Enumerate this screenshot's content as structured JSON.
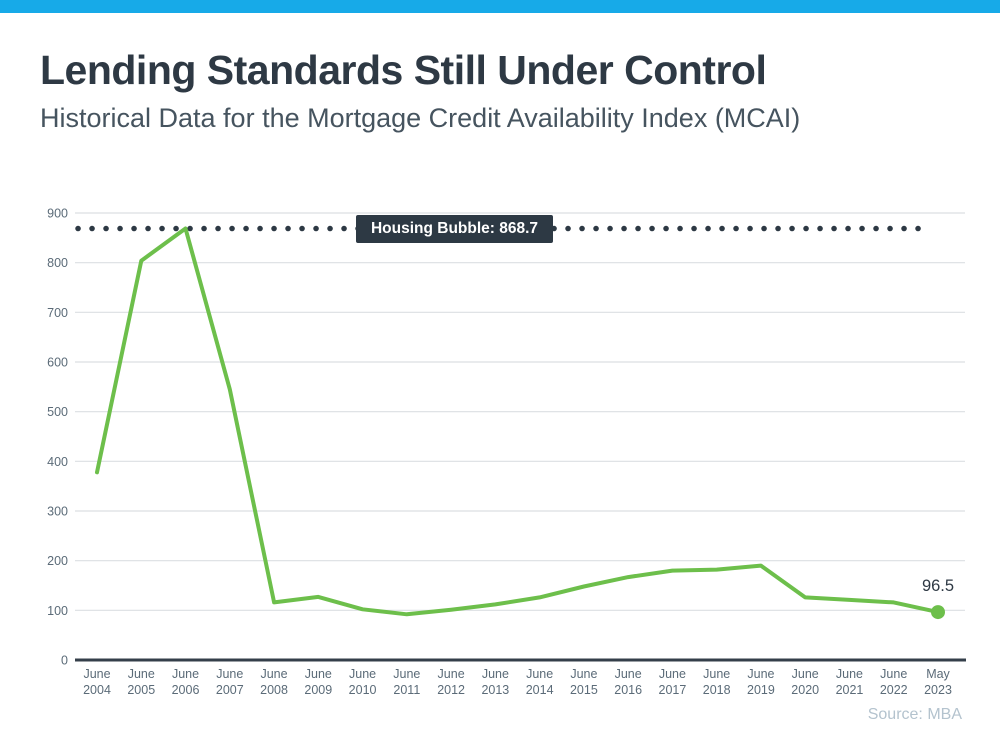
{
  "header": {
    "title": "Lending Standards Still Under Control",
    "subtitle": "Historical Data for the Mortgage Credit Availability Index (MCAI)"
  },
  "footer": {
    "source": "Source: MBA"
  },
  "theme": {
    "topbar_color": "#17aae8",
    "background": "#ffffff",
    "title_color": "#2e3944",
    "subtitle_color": "#46545f",
    "line_color": "#6dbf4b",
    "annotation_color": "#2d3944",
    "annotation_text_color": "#ffffff",
    "grid_color": "#dcdfe2",
    "axis_color": "#343f4a",
    "tick_color": "#5b6b78",
    "end_label_color": "#2e3944",
    "source_color": "#b4c3ce"
  },
  "chart_data": {
    "type": "line",
    "title": "Historical Data for the Mortgage Credit Availability Index (MCAI)",
    "series_name": "MCAI",
    "categories": [
      "June 2004",
      "June 2005",
      "June 2006",
      "June 2007",
      "June 2008",
      "June 2009",
      "June 2010",
      "June 2011",
      "June 2012",
      "June 2013",
      "June 2014",
      "June 2015",
      "June 2016",
      "June 2017",
      "June 2018",
      "June 2019",
      "June 2020",
      "June 2021",
      "June 2022",
      "May 2023"
    ],
    "values": [
      378,
      804,
      868.7,
      545,
      116,
      127,
      102,
      92,
      101,
      112,
      126,
      148,
      167,
      180,
      182,
      190,
      126,
      121,
      116,
      96.5
    ],
    "ylim": [
      0,
      900
    ],
    "yticks": [
      0,
      100,
      200,
      300,
      400,
      500,
      600,
      700,
      800,
      900
    ],
    "grid": true,
    "legend": false,
    "annotation": {
      "label": "Housing Bubble: 868.7",
      "value": 868.7
    },
    "end_point_label": "96.5"
  }
}
